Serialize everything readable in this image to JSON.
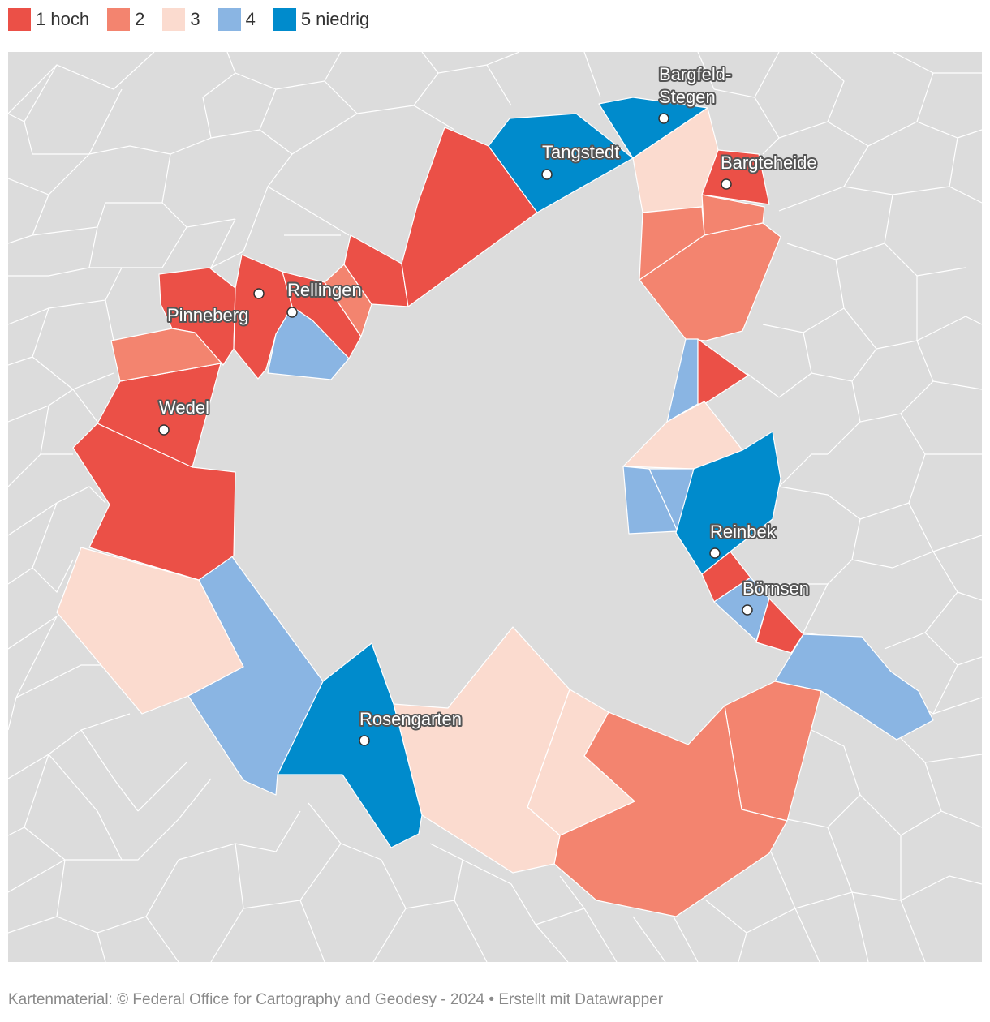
{
  "legend": {
    "items": [
      {
        "label": "1 hoch",
        "color": "#eb5047"
      },
      {
        "label": "2",
        "color": "#f3846f"
      },
      {
        "label": "3",
        "color": "#fbdbcf"
      },
      {
        "label": "4",
        "color": "#8ab5e3"
      },
      {
        "label": "5 niedrig",
        "color": "#008bcc"
      }
    ]
  },
  "map": {
    "background_color": "#dcdcdc",
    "border_color": "#ffffff",
    "cities": [
      {
        "lines": [
          "Bargfeld-",
          "Stegen"
        ]
      },
      {
        "lines": [
          "Tangstedt"
        ]
      },
      {
        "lines": [
          "Bargteheide"
        ]
      },
      {
        "lines": [
          "Rellingen"
        ]
      },
      {
        "lines": [
          "Pinneberg"
        ]
      },
      {
        "lines": [
          "Wedel"
        ]
      },
      {
        "lines": [
          "Reinbek"
        ]
      },
      {
        "lines": [
          "Börnsen"
        ]
      },
      {
        "lines": [
          "Rosengarten"
        ]
      }
    ]
  },
  "footer": {
    "text": "Kartenmaterial: © Federal Office for Cartography and Geodesy - 2024  • Erstellt mit Datawrapper"
  }
}
